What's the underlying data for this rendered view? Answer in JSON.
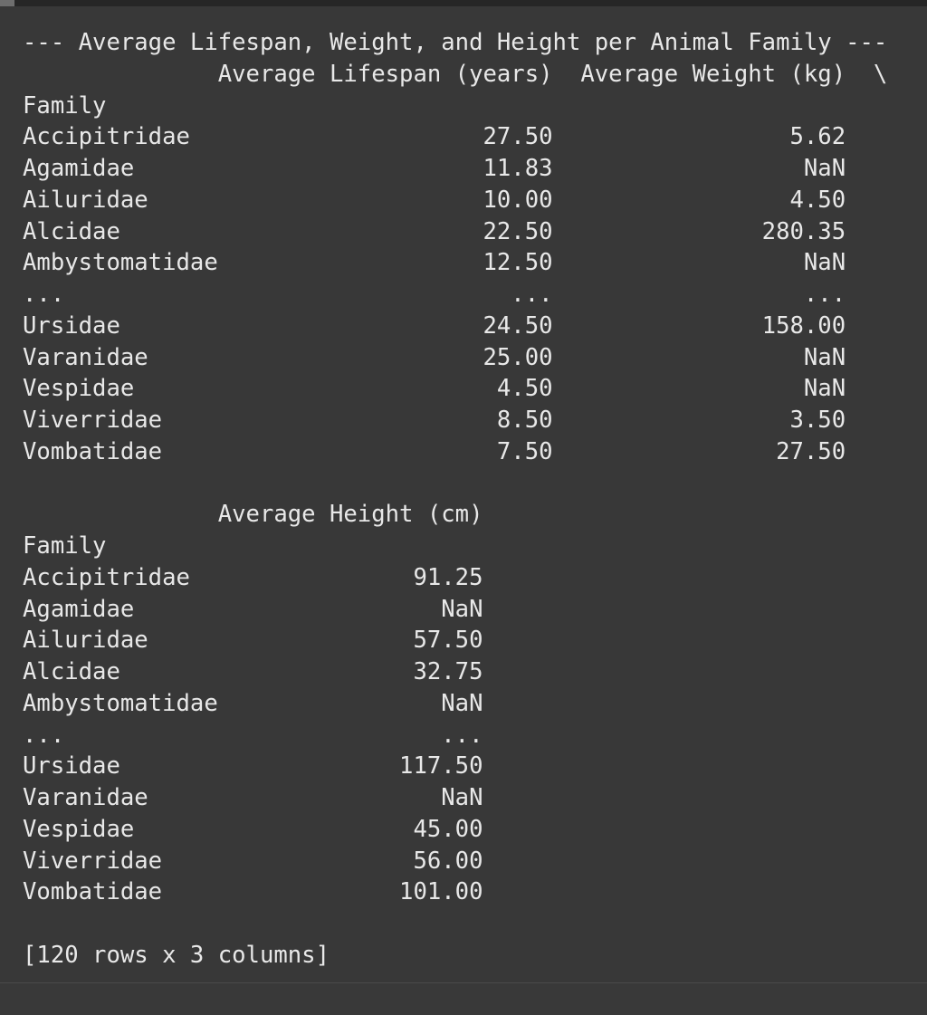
{
  "output": {
    "title": "--- Average Lifespan, Weight, and Height per Animal Family ---",
    "block1": {
      "header_line": "              Average Lifespan (years)  Average Weight (kg)  \\",
      "index_name": "Family",
      "rows": [
        "Accipitridae                     27.50                 5.62",
        "Agamidae                         11.83                  NaN",
        "Ailuridae                        10.00                 4.50",
        "Alcidae                          22.50               280.35",
        "Ambystomatidae                   12.50                  NaN",
        "...                                ...                  ...",
        "Ursidae                          24.50               158.00",
        "Varanidae                        25.00                  NaN",
        "Vespidae                          4.50                  NaN",
        "Viverridae                        8.50                 3.50",
        "Vombatidae                        7.50                27.50"
      ]
    },
    "block2": {
      "header_line": "              Average Height (cm)",
      "index_name": "Family",
      "rows": [
        "Accipitridae                91.25",
        "Agamidae                      NaN",
        "Ailuridae                   57.50",
        "Alcidae                     32.75",
        "Ambystomatidae                NaN",
        "...                           ...",
        "Ursidae                    117.50",
        "Varanidae                     NaN",
        "Vespidae                    45.00",
        "Viverridae                  56.00",
        "Vombatidae                 101.00"
      ]
    },
    "shape_summary": "[120 rows x 3 columns]"
  }
}
